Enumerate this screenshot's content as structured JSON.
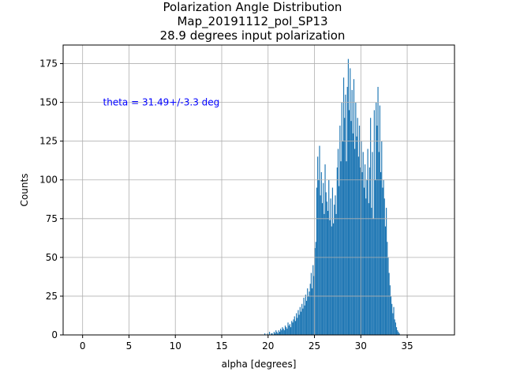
{
  "chart_data": {
    "type": "bar",
    "title_lines": [
      "Polarization Angle Distribution",
      "Map_20191112_pol_SP13",
      "28.9 degrees input polarization"
    ],
    "xlabel": "alpha [degrees]",
    "ylabel": "Counts",
    "xlim": [
      -2.1,
      40.1
    ],
    "ylim": [
      0,
      187
    ],
    "xticks": [
      0,
      5,
      10,
      15,
      20,
      25,
      30,
      35
    ],
    "yticks": [
      0,
      25,
      50,
      75,
      100,
      125,
      150,
      175
    ],
    "grid": true,
    "bar_color": "#1f77b4",
    "annotation": {
      "text": "theta = 31.49+/-3.3 deg",
      "color": "#0000ff",
      "x": 2.2,
      "y": 150
    },
    "histogram": {
      "bin_start": 19.6,
      "bin_width": 0.1,
      "counts": [
        1,
        0,
        0,
        1,
        0,
        2,
        0,
        1,
        1,
        0,
        2,
        1,
        3,
        2,
        1,
        3,
        2,
        4,
        3,
        5,
        4,
        3,
        6,
        5,
        4,
        8,
        6,
        7,
        5,
        9,
        8,
        10,
        12,
        9,
        14,
        11,
        16,
        13,
        18,
        15,
        20,
        17,
        24,
        19,
        26,
        22,
        30,
        25,
        28,
        33,
        40,
        30,
        45,
        38,
        56,
        60,
        95,
        115,
        100,
        122,
        90,
        105,
        85,
        98,
        78,
        110,
        92,
        86,
        80,
        100,
        74,
        88,
        70,
        95,
        72,
        84,
        90,
        78,
        108,
        120,
        96,
        135,
        112,
        150,
        125,
        166,
        140,
        155,
        112,
        160,
        178,
        145,
        172,
        138,
        158,
        130,
        165,
        120,
        150,
        128,
        140,
        115,
        135,
        108,
        125,
        105,
        118,
        95,
        110,
        88,
        100,
        120,
        85,
        108,
        140,
        82,
        118,
        75,
        145,
        100,
        150,
        135,
        160,
        118,
        148,
        105,
        125,
        95,
        100,
        88,
        70,
        82,
        60,
        50,
        40,
        32,
        25,
        20,
        14,
        18,
        10,
        8,
        5,
        3,
        2,
        1
      ]
    }
  }
}
